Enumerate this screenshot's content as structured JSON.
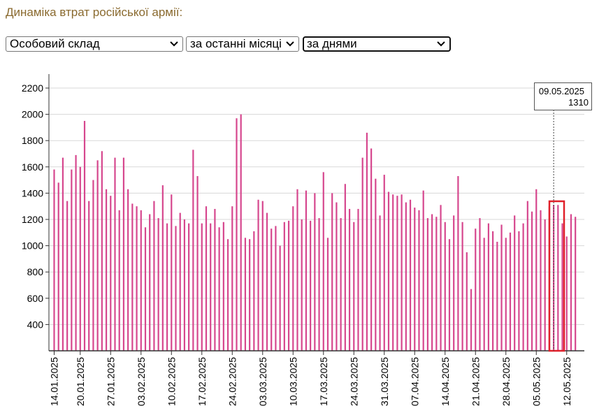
{
  "page_title": "Динаміка втрат російської армії:",
  "controls": {
    "category": {
      "value": "Особовий склад",
      "arrow_icon": "chevron-down-icon"
    },
    "period": {
      "value": "за останні місяці",
      "arrow_icon": "chevron-down-icon"
    },
    "granularity": {
      "value": "за днями",
      "arrow_icon": "chevron-down-icon"
    }
  },
  "tooltip": {
    "date": "09.05.2025",
    "value": "1310"
  },
  "colors": {
    "bar": "#d6478e",
    "grid": "#d8d8d8",
    "axis": "#333333",
    "highlight": "#e0202a",
    "title": "#8a6a2f"
  },
  "chart_data": {
    "type": "bar",
    "title": "Динаміка втрат російської армії:",
    "xlabel": "",
    "ylabel": "",
    "ylim": [
      200,
      2300
    ],
    "yticks": [
      400,
      600,
      800,
      1000,
      1200,
      1400,
      1600,
      1800,
      2000,
      2200
    ],
    "categories_start": "14.01.2025",
    "x_tick_labels": [
      "14.01.2025",
      "20.01.2025",
      "27.01.2025",
      "03.02.2025",
      "10.02.2025",
      "17.02.2025",
      "24.02.2025",
      "03.03.2025",
      "10.03.2025",
      "17.03.2025",
      "24.03.2025",
      "31.03.2025",
      "07.04.2025",
      "14.04.2025",
      "21.04.2025",
      "28.04.2025",
      "05.05.2025",
      "12.05.2025"
    ],
    "x_tick_indices": [
      0,
      6,
      13,
      20,
      27,
      34,
      41,
      48,
      55,
      62,
      69,
      76,
      83,
      90,
      97,
      104,
      111,
      118
    ],
    "highlight_index": 115,
    "values": [
      1580,
      1480,
      1670,
      1340,
      1580,
      1690,
      1600,
      1950,
      1340,
      1500,
      1650,
      1720,
      1430,
      1380,
      1670,
      1270,
      1670,
      1430,
      1320,
      1300,
      1270,
      1140,
      1240,
      1340,
      1210,
      1460,
      1170,
      1390,
      1150,
      1250,
      1200,
      1170,
      1730,
      1530,
      1170,
      1300,
      1170,
      1280,
      1140,
      1180,
      1050,
      1300,
      1970,
      2000,
      1060,
      1050,
      1110,
      1350,
      1340,
      1250,
      1130,
      1150,
      1000,
      1180,
      1190,
      1300,
      1430,
      1200,
      1420,
      1190,
      1400,
      1210,
      1560,
      1060,
      1400,
      1330,
      1210,
      1470,
      1280,
      1180,
      1280,
      1670,
      1860,
      1740,
      1510,
      1230,
      1540,
      1410,
      1390,
      1380,
      1390,
      1330,
      1350,
      1290,
      1270,
      1420,
      1210,
      1240,
      1220,
      1310,
      1180,
      1050,
      1230,
      1530,
      1180,
      950,
      670,
      1130,
      1210,
      1060,
      1170,
      1110,
      1030,
      1160,
      1060,
      1100,
      1230,
      1110,
      1170,
      1340,
      1260,
      1430,
      1270,
      1200,
      1300,
      1310,
      1310,
      1170,
      1070,
      1240,
      1220
    ]
  }
}
